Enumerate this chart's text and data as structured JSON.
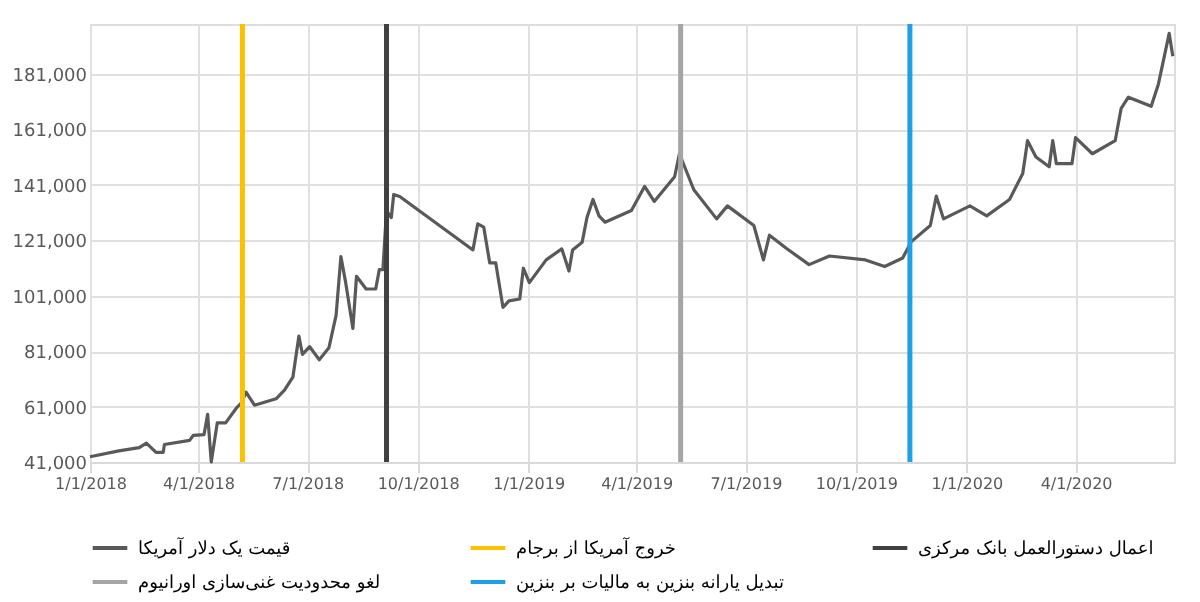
{
  "chart_data": {
    "type": "line",
    "x": [
      "2018-01-01",
      "2018-01-25",
      "2018-02-11",
      "2018-02-17",
      "2018-02-25",
      "2018-03-03",
      "2018-03-04",
      "2018-03-25",
      "2018-03-28",
      "2018-04-06",
      "2018-04-09",
      "2018-04-12",
      "2018-04-17",
      "2018-04-24",
      "2018-05-03",
      "2018-05-07",
      "2018-05-11",
      "2018-05-18",
      "2018-06-05",
      "2018-06-12",
      "2018-06-19",
      "2018-06-24",
      "2018-06-27",
      "2018-07-03",
      "2018-07-11",
      "2018-07-19",
      "2018-07-25",
      "2018-07-29",
      "2018-08-02",
      "2018-08-08",
      "2018-08-11",
      "2018-08-19",
      "2018-08-27",
      "2018-08-30",
      "2018-09-02",
      "2018-09-05",
      "2018-09-09",
      "2018-09-11",
      "2018-09-16",
      "2018-11-16",
      "2018-11-20",
      "2018-11-25",
      "2018-11-30",
      "2018-12-05",
      "2018-12-11",
      "2018-12-16",
      "2018-12-25",
      "2018-12-28",
      "2019-01-02",
      "2019-01-10",
      "2019-01-16",
      "2019-01-29",
      "2019-02-04",
      "2019-02-07",
      "2019-02-15",
      "2019-02-19",
      "2019-02-24",
      "2019-03-01",
      "2019-03-06",
      "2019-03-28",
      "2019-04-08",
      "2019-04-16",
      "2019-05-03",
      "2019-05-07",
      "2019-05-19",
      "2019-06-07",
      "2019-06-16",
      "2019-07-08",
      "2019-07-16",
      "2019-07-21",
      "2019-08-04",
      "2019-08-23",
      "2019-09-09",
      "2019-10-09",
      "2019-10-25",
      "2019-11-09",
      "2019-11-16",
      "2019-12-02",
      "2019-12-07",
      "2019-12-13",
      "2020-01-04",
      "2020-01-18",
      "2020-02-06",
      "2020-02-17",
      "2020-02-21",
      "2020-02-28",
      "2020-03-10",
      "2020-03-13",
      "2020-03-16",
      "2020-03-29",
      "2020-04-01",
      "2020-04-15",
      "2020-05-04",
      "2020-05-09",
      "2020-05-15",
      "2020-06-03",
      "2020-06-09",
      "2020-06-18",
      "2020-06-21"
    ],
    "series": [
      {
        "name": "قیمت یک دلار آمریکا",
        "color": "#595959",
        "values": [
          42900,
          45000,
          46200,
          47800,
          44500,
          44500,
          47300,
          48800,
          50600,
          50900,
          58200,
          41000,
          55100,
          55100,
          60500,
          62200,
          66200,
          61500,
          63800,
          66900,
          71600,
          86400,
          79800,
          82600,
          77900,
          82200,
          93900,
          115100,
          105700,
          89200,
          108000,
          103400,
          103400,
          110400,
          110400,
          131600,
          129200,
          137500,
          136800,
          117500,
          126900,
          125700,
          112800,
          112800,
          96800,
          99100,
          99800,
          110900,
          105700,
          110400,
          113900,
          117900,
          109900,
          117500,
          120300,
          129200,
          135700,
          129800,
          127500,
          131700,
          140400,
          135000,
          143900,
          152200,
          139200,
          128700,
          133400,
          126300,
          113900,
          122800,
          118100,
          112200,
          115300,
          113900,
          111500,
          114600,
          120400,
          126300,
          136900,
          128700,
          133400,
          129800,
          135700,
          145100,
          156900,
          151000,
          147500,
          156900,
          148600,
          148600,
          158000,
          152200,
          156900,
          168600,
          172600,
          169300,
          177300,
          195600,
          187400
        ]
      }
    ],
    "ref_lines": [
      {
        "axis": "x",
        "value": "2018-05-08",
        "label": "خروج آمریکا از برجام",
        "color": "#ffc000"
      },
      {
        "axis": "x",
        "value": "2018-09-05",
        "label": "اعمال دستورالعمل بانک مرکزی",
        "color": "#404040"
      },
      {
        "axis": "x",
        "value": "2019-05-08",
        "label": "لغو محدودیت غنی‌سازی اورانیوم",
        "color": "#a5a5a5"
      },
      {
        "axis": "x",
        "value": "2019-11-15",
        "label": "تبدیل یارانه بنزین به مالیات بر بنزین",
        "color": "#1ea0e6"
      }
    ],
    "xlim": [
      "2018-01-01",
      "2020-06-22"
    ],
    "xticks": [
      {
        "value": "2018-01-01",
        "label": "1/1/2018"
      },
      {
        "value": "2018-04-01",
        "label": "4/1/2018"
      },
      {
        "value": "2018-07-01",
        "label": "7/1/2018"
      },
      {
        "value": "2018-10-01",
        "label": "10/1/2018"
      },
      {
        "value": "2019-01-01",
        "label": "1/1/2019"
      },
      {
        "value": "2019-04-01",
        "label": "4/1/2019"
      },
      {
        "value": "2019-07-01",
        "label": "7/1/2019"
      },
      {
        "value": "2019-10-01",
        "label": "10/1/2019"
      },
      {
        "value": "2020-01-01",
        "label": "1/1/2020"
      },
      {
        "value": "2020-04-01",
        "label": "4/1/2020"
      }
    ],
    "ylim": [
      41000,
      199000
    ],
    "yticks": [
      {
        "value": 41000,
        "label": "41,000"
      },
      {
        "value": 61000,
        "label": "61,000"
      },
      {
        "value": 81000,
        "label": "81,000"
      },
      {
        "value": 101000,
        "label": "101,000"
      },
      {
        "value": 121000,
        "label": "121,000"
      },
      {
        "value": 141000,
        "label": "141,000"
      },
      {
        "value": 161000,
        "label": "161,000"
      },
      {
        "value": 181000,
        "label": "181,000"
      }
    ],
    "grid": true,
    "legend": "bottom"
  }
}
